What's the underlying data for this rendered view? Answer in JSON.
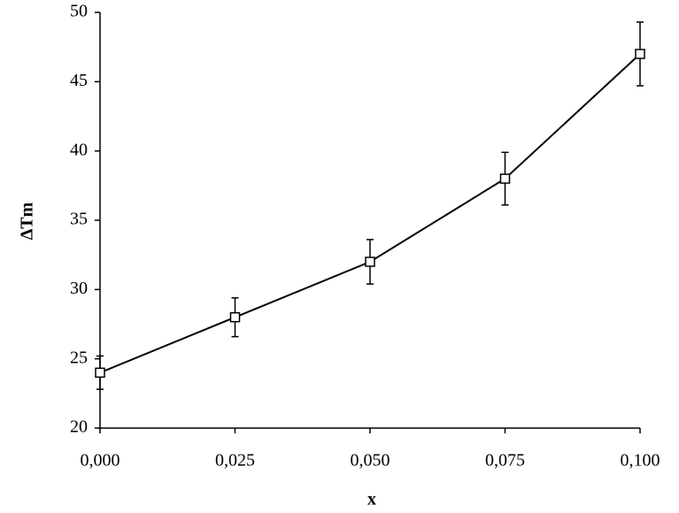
{
  "chart_data": {
    "type": "line",
    "x_label": "x",
    "y_label": "ΔTm",
    "x": [
      0,
      0.025,
      0.05,
      0.075,
      0.1
    ],
    "values": [
      24,
      28,
      32,
      38,
      47
    ],
    "errors": [
      1.2,
      1.4,
      1.6,
      1.9,
      2.3
    ],
    "color": "#000000",
    "xlim": [
      0,
      0.1
    ],
    "xticks": [
      {
        "value": 0,
        "label": "0,000"
      },
      {
        "value": 0.025,
        "label": "0,025"
      },
      {
        "value": 0.05,
        "label": "0,050"
      },
      {
        "value": 0.075,
        "label": "0,075"
      },
      {
        "value": 0.1,
        "label": "0,100"
      }
    ],
    "ylim": [
      20,
      50
    ],
    "yticks": [
      20,
      25,
      30,
      35,
      40,
      45,
      50
    ],
    "grid": false
  }
}
